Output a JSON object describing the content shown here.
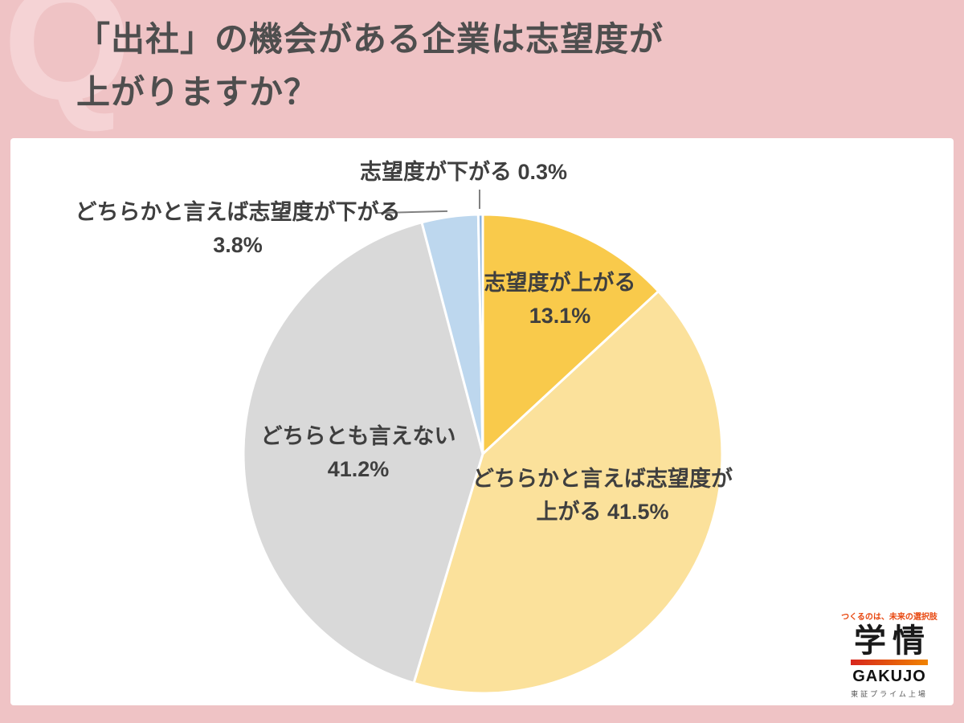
{
  "background_color": "#EFC3C5",
  "watermark": "Q",
  "header": {
    "title_line1": "「出社」の機会がある企業は志望度が",
    "title_line2": "上がりますか？",
    "text_color": "#4E4E4E"
  },
  "chart_data": {
    "type": "pie",
    "title": "「出社」の機会がある企業は志望度が上がりますか？",
    "start_angle": "top",
    "direction": "clockwise",
    "stroke_color": "#FFFFFF",
    "slices": [
      {
        "label": "志望度が上がる",
        "value": 13.1,
        "pct_text": "13.1%",
        "color": "#F9CA4B",
        "line1": "志望度が上がる",
        "line2": "13.1%",
        "label_placement": "inside"
      },
      {
        "label": "どちらかと言えば志望度が上がる",
        "value": 41.5,
        "pct_text": "41.5%",
        "color": "#FBE19B",
        "line1": "どちらかと言えば志望度が",
        "line2": "上がる 41.5%",
        "label_placement": "inside"
      },
      {
        "label": "どちらとも言えない",
        "value": 41.2,
        "pct_text": "41.2%",
        "color": "#D9D9D9",
        "line1": "どちらとも言えない",
        "line2": "41.2%",
        "label_placement": "inside"
      },
      {
        "label": "どちらかと言えば志望度が下がる",
        "value": 3.8,
        "pct_text": "3.8%",
        "color": "#BDD7EE",
        "line1": "どちらかと言えば志望度が下がる",
        "line2": "3.8%",
        "label_placement": "outside"
      },
      {
        "label": "志望度が下がる",
        "value": 0.3,
        "pct_text": "0.3%",
        "color": "#8EB4DE",
        "line1": "志望度が下がる 0.3%",
        "line2": "",
        "label_placement": "outside"
      }
    ]
  },
  "logo": {
    "tagline": "つくるのは、未来の選択肢",
    "name_kanji": "学情",
    "name_roman": "GAKUJO",
    "listing": "東証プライム上場",
    "accent_color": "#E8470F",
    "bar_gradient_start": "#D7261D",
    "bar_gradient_end": "#F08300"
  }
}
